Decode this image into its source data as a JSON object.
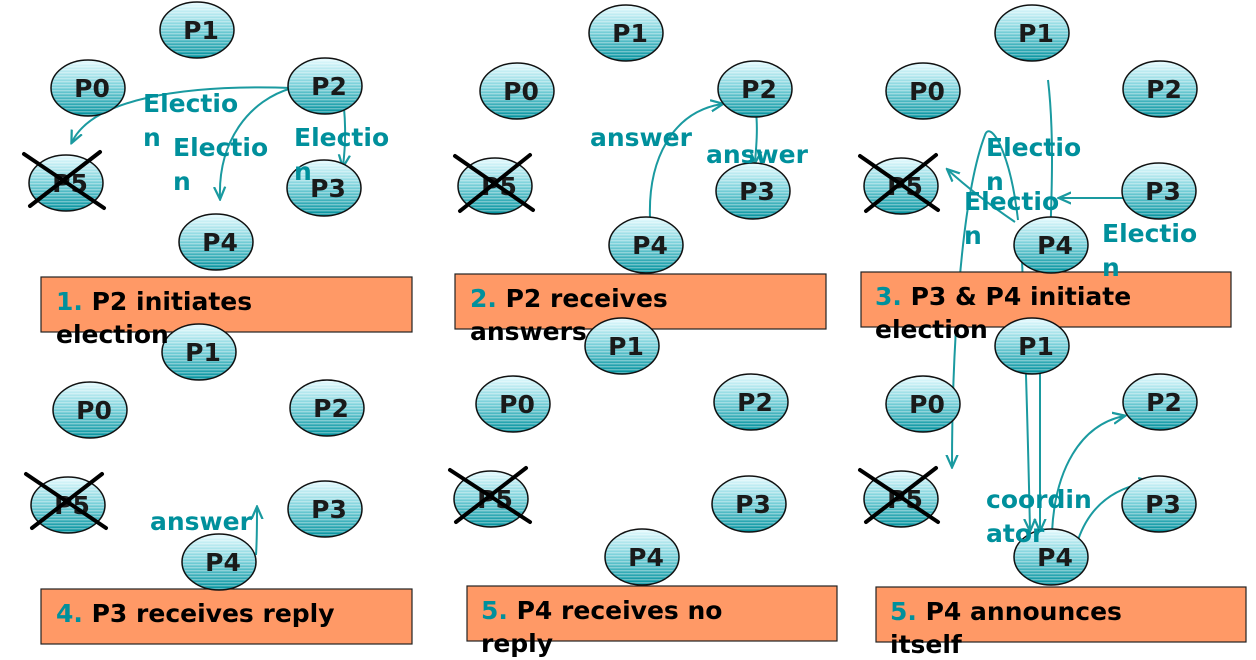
{
  "colors": {
    "node_fill_top": "#e6fbff",
    "node_fill_bottom": "#00909c",
    "caption_fill": "#ff9966",
    "message_text": "#00909c",
    "arrow": "#1a9aa0"
  },
  "panels": [
    {
      "id": "panel-1",
      "caption": {
        "number": "1.",
        "lines": [
          "P2 initiates",
          "election"
        ]
      },
      "nodes": {
        "P0": "P0",
        "P1": "P1",
        "P2": "P2",
        "P3": "P3",
        "P4": "P4",
        "P5": "P5"
      },
      "crashed": "P5",
      "messages": [
        {
          "lines": [
            "Electio",
            "n"
          ]
        },
        {
          "lines": [
            "Electio",
            "n"
          ]
        },
        {
          "lines": [
            "Electio",
            "n"
          ]
        }
      ]
    },
    {
      "id": "panel-2",
      "caption": {
        "number": "2.",
        "lines": [
          "P2 receives",
          "answers"
        ]
      },
      "nodes": {
        "P0": "P0",
        "P1": "P1",
        "P2": "P2",
        "P3": "P3",
        "P4": "P4",
        "P5": "P5"
      },
      "crashed": "P5",
      "messages": [
        {
          "lines": [
            "answer"
          ]
        },
        {
          "lines": [
            "answer"
          ]
        }
      ]
    },
    {
      "id": "panel-3",
      "caption": {
        "number": "3.",
        "lines": [
          "P3 & P4 initiate",
          "election"
        ]
      },
      "nodes": {
        "P0": "P0",
        "P1": "P1",
        "P2": "P2",
        "P3": "P3",
        "P4": "P4",
        "P5": "P5"
      },
      "crashed": "P5",
      "messages": [
        {
          "lines": [
            "Electio",
            "n"
          ]
        },
        {
          "lines": [
            "Electio",
            "n"
          ]
        },
        {
          "lines": [
            "Electio",
            "n"
          ]
        }
      ]
    },
    {
      "id": "panel-4",
      "caption": {
        "number": "4.",
        "lines": [
          "P3 receives reply"
        ]
      },
      "nodes": {
        "P0": "P0",
        "P1": "P1",
        "P2": "P2",
        "P3": "P3",
        "P4": "P4",
        "P5": "P5"
      },
      "crashed": "P5",
      "messages": [
        {
          "lines": [
            "answer"
          ]
        }
      ]
    },
    {
      "id": "panel-5",
      "caption": {
        "number": "5.",
        "lines": [
          "P4 receives no",
          "reply"
        ]
      },
      "nodes": {
        "P0": "P0",
        "P1": "P1",
        "P2": "P2",
        "P3": "P3",
        "P4": "P4",
        "P5": "P5"
      },
      "crashed": "P5",
      "messages": []
    },
    {
      "id": "panel-6",
      "caption": {
        "number": "5.",
        "lines": [
          "P4 announces",
          "itself"
        ]
      },
      "nodes": {
        "P0": "P0",
        "P1": "P1",
        "P2": "P2",
        "P3": "P3",
        "P4": "P4",
        "P5": "P5"
      },
      "crashed": "P5",
      "messages": [
        {
          "lines": [
            "coordin",
            "ator"
          ]
        }
      ]
    }
  ]
}
